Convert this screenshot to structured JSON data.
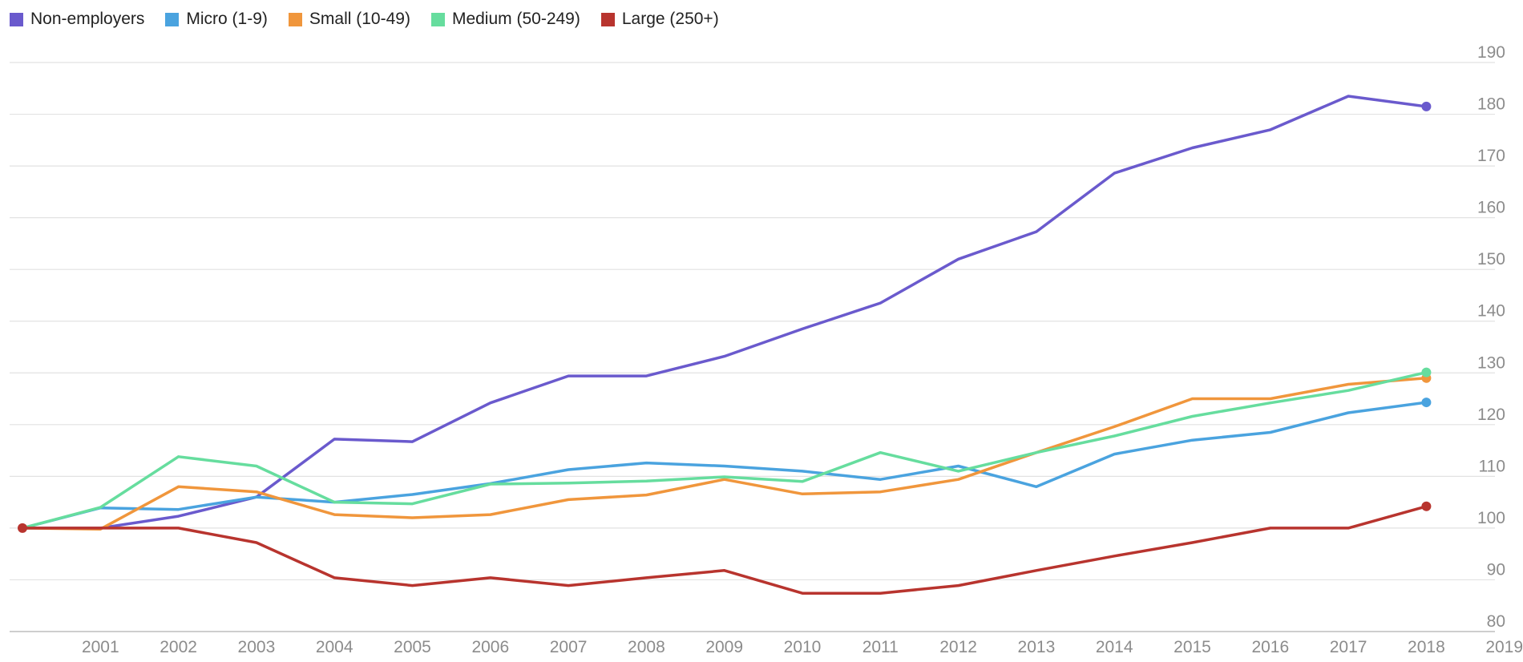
{
  "chart_data": {
    "type": "line",
    "title": "",
    "xlabel": "",
    "ylabel": "",
    "x": [
      2000,
      2001,
      2002,
      2003,
      2004,
      2005,
      2006,
      2007,
      2008,
      2009,
      2010,
      2011,
      2012,
      2013,
      2014,
      2015,
      2016,
      2017,
      2018
    ],
    "xlim": [
      2000,
      2019
    ],
    "x_ticks": [
      "2001",
      "2002",
      "2003",
      "2004",
      "2005",
      "2006",
      "2007",
      "2008",
      "2009",
      "2010",
      "2011",
      "2012",
      "2013",
      "2014",
      "2015",
      "2016",
      "2017",
      "2018",
      "2019"
    ],
    "ylim": [
      80,
      190
    ],
    "y_ticks": [
      "80",
      "90",
      "100",
      "110",
      "120",
      "130",
      "140",
      "150",
      "160",
      "170",
      "180",
      "190"
    ],
    "y_axis_position": "right",
    "grid": true,
    "legend_position": "top-left",
    "end_markers": true,
    "series": [
      {
        "name": "Non-employers",
        "color": "#6a5acd",
        "values": [
          100,
          100,
          102.3,
          106,
          117.2,
          116.7,
          124.2,
          129.4,
          129.4,
          133.2,
          138.5,
          143.5,
          152,
          157.3,
          168.6,
          173.5,
          177,
          183.5,
          181.5
        ]
      },
      {
        "name": "Micro (1-9)",
        "color": "#4aa3df",
        "values": [
          100,
          103.9,
          103.6,
          106,
          105,
          106.5,
          108.6,
          111.3,
          112.6,
          112,
          111,
          109.4,
          112,
          108,
          114.3,
          117,
          118.5,
          122.3,
          124.3
        ]
      },
      {
        "name": "Small (10-49)",
        "color": "#f0963c",
        "values": [
          100,
          99.8,
          108,
          107,
          102.6,
          102,
          102.6,
          105.5,
          106.4,
          109.4,
          106.6,
          107,
          109.4,
          114.6,
          119.6,
          125,
          125,
          127.8,
          129
        ]
      },
      {
        "name": "Medium (50-249)",
        "color": "#66dd9e",
        "values": [
          100,
          104,
          113.8,
          112,
          105,
          104.7,
          108.5,
          108.7,
          109.1,
          109.9,
          109,
          114.6,
          111,
          114.6,
          117.8,
          121.6,
          124.2,
          126.6,
          130.1
        ]
      },
      {
        "name": "Large (250+)",
        "color": "#b8342e",
        "values": [
          100,
          100,
          100,
          97.2,
          90.4,
          88.9,
          90.4,
          88.9,
          90.4,
          91.8,
          87.4,
          87.4,
          88.9,
          91.8,
          94.6,
          97.2,
          100,
          100,
          104.2
        ]
      }
    ]
  }
}
